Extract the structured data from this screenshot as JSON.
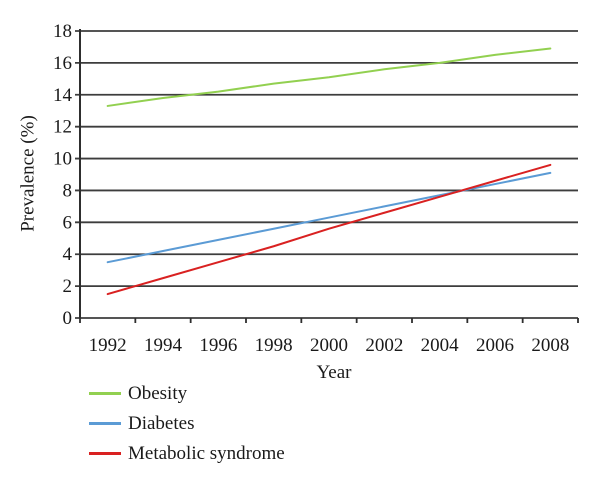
{
  "figure": {
    "background": "#ffffff"
  },
  "chart_data": {
    "type": "line",
    "title": "",
    "xlabel": "Year",
    "ylabel": "Prevalence (%)",
    "categories": [
      "1992",
      "1994",
      "1996",
      "1998",
      "2000",
      "2002",
      "2004",
      "2006",
      "2008"
    ],
    "ylim": [
      0,
      18
    ],
    "ytick_step": 2,
    "yticks": [
      0,
      2,
      4,
      6,
      8,
      10,
      12,
      14,
      16,
      18
    ],
    "grid": true,
    "gridline_color": "#3d3d3d",
    "axis_color": "#2e2e2e",
    "text_color": "#1a1a1a",
    "legend_position": "bottom-left",
    "series": [
      {
        "name": "Obesity",
        "color": "#92d050",
        "values": [
          13.3,
          13.8,
          14.2,
          14.7,
          15.1,
          15.6,
          16.0,
          16.5,
          16.9
        ]
      },
      {
        "name": "Diabetes",
        "color": "#5b9bd5",
        "values": [
          3.5,
          4.2,
          4.9,
          5.6,
          6.3,
          7.0,
          7.7,
          8.4,
          9.1
        ]
      },
      {
        "name": "Metabolic syndrome",
        "color": "#d92121",
        "values": [
          1.5,
          2.5,
          3.5,
          4.5,
          5.6,
          6.6,
          7.6,
          8.6,
          9.6
        ]
      }
    ]
  }
}
